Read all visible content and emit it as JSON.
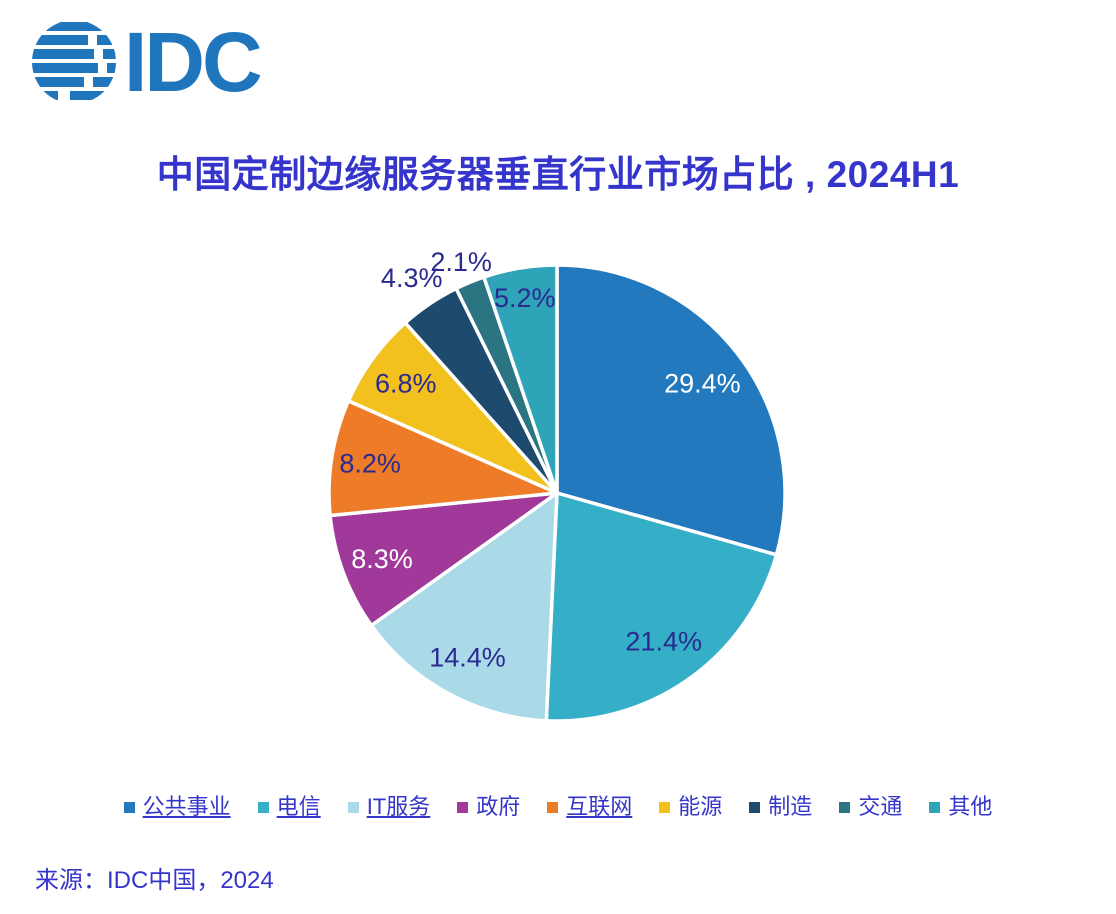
{
  "page": {
    "background": "#FFFFFF"
  },
  "logo": {
    "brand": "IDC",
    "color": "#2076BC"
  },
  "header": {
    "title": "中国定制边缘服务器垂直行业市场占比 , 2024H1",
    "title_color": "#3535CB"
  },
  "footer": {
    "source": "来源：IDC中国，2024"
  },
  "chart_data": {
    "type": "pie",
    "title": "中国定制边缘服务器垂直行业市场占比 , 2024H1",
    "legend_position": "bottom",
    "start_angle_deg": -90,
    "direction": "clockwise",
    "slice_border_color": "#FFFFFF",
    "label_text_color_dark": "#2A2A90",
    "series": [
      {
        "label": "公共事业",
        "value": 29.4,
        "display": "29.4%",
        "color": "#2379BD",
        "label_color": "#FFFFFF",
        "label_position": "inside",
        "label_r": 0.8,
        "underline": true
      },
      {
        "label": "电信",
        "value": 21.4,
        "display": "21.4%",
        "color": "#35AFC7",
        "label_color": "#2A2A90",
        "label_position": "inside",
        "label_r": 0.8,
        "underline": true
      },
      {
        "label": "IT服务",
        "value": 14.4,
        "display": "14.4%",
        "color": "#AADAE8",
        "label_color": "#2A2A90",
        "label_position": "inside",
        "label_r": 0.82,
        "underline": true
      },
      {
        "label": "政府",
        "value": 8.3,
        "display": "8.3%",
        "color": "#A0399A",
        "label_color": "#FFFFFF",
        "label_position": "inside",
        "label_r": 0.82,
        "underline": false
      },
      {
        "label": "互联网",
        "value": 8.2,
        "display": "8.2%",
        "color": "#EE7B28",
        "label_color": "#2A2A90",
        "label_position": "inside",
        "label_r": 0.83,
        "underline": true
      },
      {
        "label": "能源",
        "value": 6.8,
        "display": "6.8%",
        "color": "#F2C11E",
        "label_color": "#2A2A90",
        "label_position": "inside",
        "label_r": 0.82,
        "underline": false
      },
      {
        "label": "制造",
        "value": 4.3,
        "display": "4.3%",
        "color": "#1E4A6D",
        "label_color": "#2A2A90",
        "label_position": "outside",
        "label_r": 1.14,
        "underline": false
      },
      {
        "label": "交通",
        "value": 2.1,
        "display": "2.1%",
        "color": "#2B7482",
        "label_color": "#2A2A90",
        "label_position": "outside",
        "label_r": 1.1,
        "underline": false
      },
      {
        "label": "其他",
        "value": 5.2,
        "display": "5.2%",
        "color": "#2FA3B8",
        "label_color": "#2A2A90",
        "label_position": "inside",
        "label_r": 0.87,
        "underline": false
      }
    ]
  }
}
